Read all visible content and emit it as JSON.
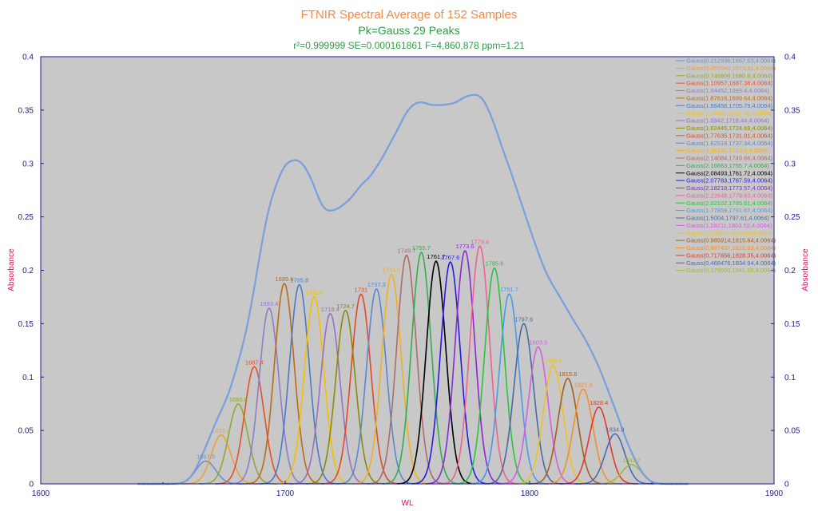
{
  "chart_data": {
    "type": "line",
    "title": "FTNIR Spectral Average of 152 Samples",
    "subtitle": "Pk=Gauss  29 Peaks",
    "stats_line": "r²=0.999999  SE=0.000161861  F=4,860,878  ppm=1.21",
    "xlabel": "WL",
    "ylabel": "Absorbance",
    "xlim": [
      1600,
      1900
    ],
    "ylim": [
      0,
      0.4
    ],
    "x_ticks": [
      "1600",
      "1700",
      "1800",
      "1900"
    ],
    "y_ticks": [
      "0",
      "0.05",
      "0.1",
      "0.15",
      "0.2",
      "0.25",
      "0.3",
      "0.35",
      "0.4"
    ],
    "grid": false,
    "legend_position": "top-right",
    "colors": {
      "title": "#f08a4b",
      "subtitle": "#2e9c46",
      "stats": "#2e9c46",
      "axis": "#1a1a8c",
      "axis_label": "#d0115f",
      "plot_bg": "#c8c8c8",
      "data": "#7b9edc",
      "fit": "#d94a3a"
    },
    "peaks": [
      {
        "legend": "Gauss(0.212936,1667.53,4.0064)",
        "amp": 0.0213,
        "center": 1667.53,
        "width": 4.0064,
        "label": "1667.5",
        "color": "#6f8fc9"
      },
      {
        "legend": "Gauss(0.457049,1673.81,4.0064)",
        "amp": 0.0457,
        "center": 1673.81,
        "width": 4.0064,
        "label": "1673.8",
        "color": "#f0a030"
      },
      {
        "legend": "Gauss(0.746606,1680.8,4.0064)",
        "amp": 0.0747,
        "center": 1680.8,
        "width": 4.0064,
        "label": "1680.8",
        "color": "#8fa830"
      },
      {
        "legend": "Gauss(1.10957,1687.38,4.0064)",
        "amp": 0.1096,
        "center": 1687.38,
        "width": 4.0064,
        "label": "1687.4",
        "color": "#e8502a"
      },
      {
        "legend": "Gauss(1.64452,1693.4,4.0064)",
        "amp": 0.1645,
        "center": 1693.4,
        "width": 4.0064,
        "label": "1693.4",
        "color": "#8b7fc8"
      },
      {
        "legend": "Gauss(1.87616,1699.64,4.0064)",
        "amp": 0.1876,
        "center": 1699.64,
        "width": 4.0064,
        "label": "1699.6",
        "color": "#c06a18"
      },
      {
        "legend": "Gauss(1.86458,1705.79,4.0064)",
        "amp": 0.1865,
        "center": 1705.79,
        "width": 4.0064,
        "label": "1705.8",
        "color": "#4a7ac8"
      },
      {
        "legend": "Gauss(1.75085,1711.88,4.0064)",
        "amp": 0.1751,
        "center": 1711.88,
        "width": 4.0064,
        "label": "1711.9",
        "color": "#f5c000"
      },
      {
        "legend": "Gauss(1.5942,1718.44,4.0064)",
        "amp": 0.1594,
        "center": 1718.44,
        "width": 4.0064,
        "label": "1718.4",
        "color": "#9a6fc2"
      },
      {
        "legend": "Gauss(1.62445,1724.69,4.0064)",
        "amp": 0.1624,
        "center": 1724.69,
        "width": 4.0064,
        "label": "1724.7",
        "color": "#8a8a10"
      },
      {
        "legend": "Gauss(1.77635,1731.01,4.0064)",
        "amp": 0.1776,
        "center": 1731.01,
        "width": 4.0064,
        "label": "1731",
        "color": "#e04a2a"
      },
      {
        "legend": "Gauss(1.82519,1737.34,4.0064)",
        "amp": 0.1825,
        "center": 1737.34,
        "width": 4.0064,
        "label": "1737.3",
        "color": "#5a88d0"
      },
      {
        "legend": "Gauss(1.96162,1743.5,4.0064)",
        "amp": 0.1962,
        "center": 1743.5,
        "width": 4.0064,
        "label": "1743.5",
        "color": "#f0b020"
      },
      {
        "legend": "Gauss(2.14084,1749.66,4.0064)",
        "amp": 0.2141,
        "center": 1749.66,
        "width": 4.0064,
        "label": "1749.7",
        "color": "#b06a6a"
      },
      {
        "legend": "Gauss(2.16663,1755.7,4.0064)",
        "amp": 0.2167,
        "center": 1755.7,
        "width": 4.0064,
        "label": "1755.7",
        "color": "#2fb04a"
      },
      {
        "legend": "Gauss(2.08493,1761.72,4.0064)",
        "amp": 0.2085,
        "center": 1761.72,
        "width": 4.0064,
        "label": "1761.7",
        "color": "#000000"
      },
      {
        "legend": "Gauss(2.07783,1767.59,4.0064)",
        "amp": 0.2078,
        "center": 1767.59,
        "width": 4.0064,
        "label": "1767.6",
        "color": "#2a1ae0"
      },
      {
        "legend": "Gauss(2.18218,1773.57,4.0064)",
        "amp": 0.2182,
        "center": 1773.57,
        "width": 4.0064,
        "label": "1773.6",
        "color": "#8a2ad0"
      },
      {
        "legend": "Gauss(2.22648,1779.63,4.0064)",
        "amp": 0.2226,
        "center": 1779.63,
        "width": 4.0064,
        "label": "1779.6",
        "color": "#f06090"
      },
      {
        "legend": "Gauss(2.02102,1785.61,4.0064)",
        "amp": 0.2021,
        "center": 1785.61,
        "width": 4.0064,
        "label": "1785.6",
        "color": "#30c040"
      },
      {
        "legend": "Gauss(1.77859,1791.67,4.0064)",
        "amp": 0.1779,
        "center": 1791.67,
        "width": 4.0064,
        "label": "1791.7",
        "color": "#4a9ae8"
      },
      {
        "legend": "Gauss(1.5004,1797.61,4.0064)",
        "amp": 0.15,
        "center": 1797.61,
        "width": 4.0064,
        "label": "1797.6",
        "color": "#4a6aa0"
      },
      {
        "legend": "Gauss(1.28211,1803.52,4.0064)",
        "amp": 0.1282,
        "center": 1803.52,
        "width": 4.0064,
        "label": "1803.5",
        "color": "#d060e0"
      },
      {
        "legend": "Gauss(1.10999,1809.63,4.0064)",
        "amp": 0.111,
        "center": 1809.63,
        "width": 4.0064,
        "label": "1809.6",
        "color": "#f0c020"
      },
      {
        "legend": "Gauss(0.985914,1815.64,4.0064)",
        "amp": 0.0986,
        "center": 1815.64,
        "width": 4.0064,
        "label": "1815.6",
        "color": "#a06020"
      },
      {
        "legend": "Gauss(0.887437,1821.93,4.0064)",
        "amp": 0.0887,
        "center": 1821.93,
        "width": 4.0064,
        "label": "1821.9",
        "color": "#f09030"
      },
      {
        "legend": "Gauss(0.717856,1828.35,4.0064)",
        "amp": 0.0718,
        "center": 1828.35,
        "width": 4.0064,
        "label": "1828.4",
        "color": "#e03a2a"
      },
      {
        "legend": "Gauss(0.468476,1834.94,4.0064)",
        "amp": 0.0468,
        "center": 1834.94,
        "width": 4.0064,
        "label": "1834.9",
        "color": "#4a6ab8"
      },
      {
        "legend": "Gauss(0.179506,1841.69,4.0064)",
        "amp": 0.018,
        "center": 1841.69,
        "width": 4.0064,
        "label": "1841.7",
        "color": "#a0b840"
      }
    ],
    "series": [
      {
        "role": "composite data",
        "color": "#7b9edc"
      },
      {
        "role": "composite fit",
        "color": "#d94a3a"
      }
    ]
  }
}
